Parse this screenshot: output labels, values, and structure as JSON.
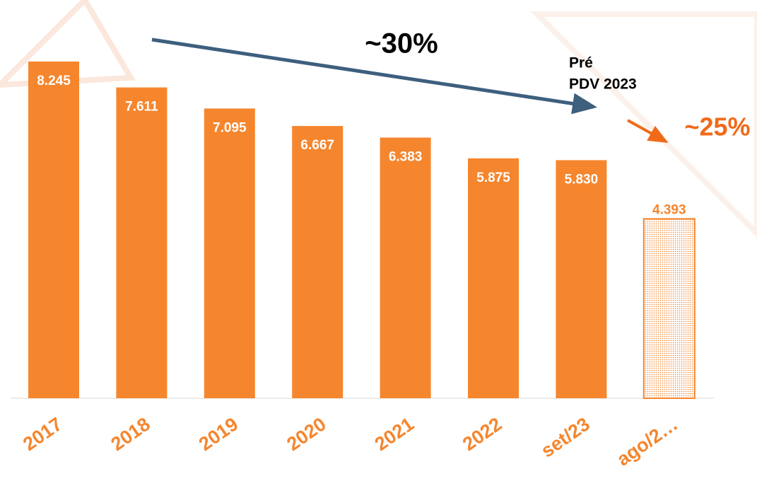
{
  "chart_data": {
    "type": "bar",
    "categories": [
      "2017",
      "2018",
      "2019",
      "2020",
      "2021",
      "2022",
      "set/23",
      "ago/2…"
    ],
    "values": [
      8245,
      7611,
      7095,
      6667,
      6383,
      5875,
      5830,
      4393
    ],
    "value_labels": [
      "8.245",
      "7.611",
      "7.095",
      "6.667",
      "6.383",
      "5.875",
      "5.830",
      "4.393"
    ],
    "color": "#f5862e",
    "patterned": [
      false,
      false,
      false,
      false,
      false,
      false,
      false,
      true
    ],
    "annotations": {
      "decline_all": "~30%",
      "pre_line1": "Pré",
      "pre_line2": "PDV 2023",
      "decline_recent": "~25%"
    }
  }
}
